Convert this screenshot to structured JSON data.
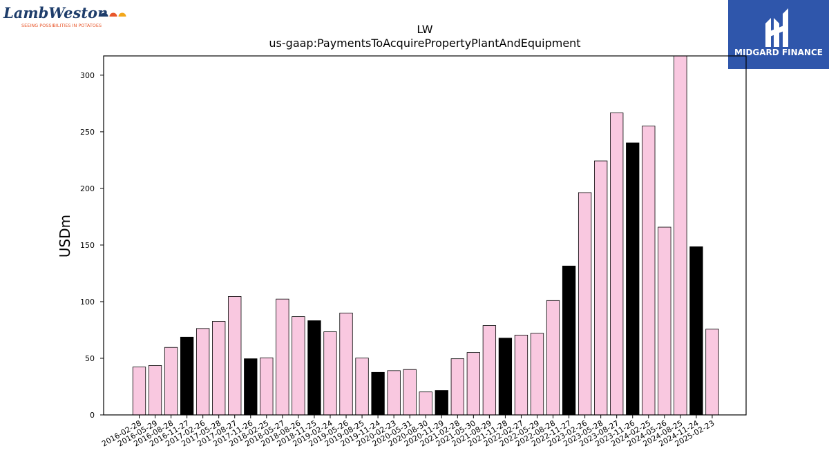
{
  "chart_data": {
    "type": "bar",
    "title": "LW",
    "subtitle": "us-gaap:PaymentsToAcquirePropertyPlantAndEquipment",
    "xlabel": "",
    "ylabel": "USDm",
    "ylim": [
      0,
      317
    ],
    "yticks": [
      0,
      50,
      100,
      150,
      200,
      250,
      300
    ],
    "grid": false,
    "colors": {
      "regular": "#f9c8e0",
      "highlight": "#000000"
    },
    "categories": [
      "2016-02-28",
      "2016-05-29",
      "2016-08-28",
      "2016-11-27",
      "2017-02-26",
      "2017-05-28",
      "2017-08-27",
      "2017-11-26",
      "2018-02-25",
      "2018-05-27",
      "2018-08-26",
      "2018-11-25",
      "2019-02-24",
      "2019-05-26",
      "2019-08-25",
      "2019-11-24",
      "2020-02-23",
      "2020-05-31",
      "2020-08-30",
      "2020-11-29",
      "2021-02-28",
      "2021-05-30",
      "2021-08-29",
      "2021-11-28",
      "2022-02-27",
      "2022-05-29",
      "2022-08-28",
      "2022-11-27",
      "2023-02-26",
      "2023-05-28",
      "2023-08-27",
      "2023-11-26",
      "2024-02-25",
      "2024-05-26",
      "2024-08-25",
      "2024-11-24",
      "2025-02-23"
    ],
    "values": [
      42.3,
      43.6,
      59.6,
      68.7,
      76.3,
      82.6,
      104.6,
      49.6,
      50.4,
      102.3,
      86.8,
      83.2,
      73.4,
      90.0,
      50.2,
      37.6,
      39.1,
      40.1,
      20.3,
      21.6,
      49.6,
      55.1,
      78.9,
      67.8,
      70.5,
      72.1,
      101.0,
      131.5,
      196.3,
      224.3,
      266.7,
      240.2,
      255.1,
      165.8,
      317.0,
      148.5,
      75.7
    ],
    "highlighted": [
      false,
      false,
      false,
      true,
      false,
      false,
      false,
      true,
      false,
      false,
      false,
      true,
      false,
      false,
      false,
      true,
      false,
      false,
      false,
      true,
      false,
      false,
      false,
      true,
      false,
      false,
      false,
      true,
      false,
      false,
      false,
      true,
      false,
      false,
      false,
      true,
      false
    ]
  },
  "logos": {
    "left": {
      "name": "LambWeston",
      "tagline": "SEEING POSSIBILITIES IN POTATOES"
    },
    "right": {
      "name": "MIDGARD FINANCE"
    }
  }
}
